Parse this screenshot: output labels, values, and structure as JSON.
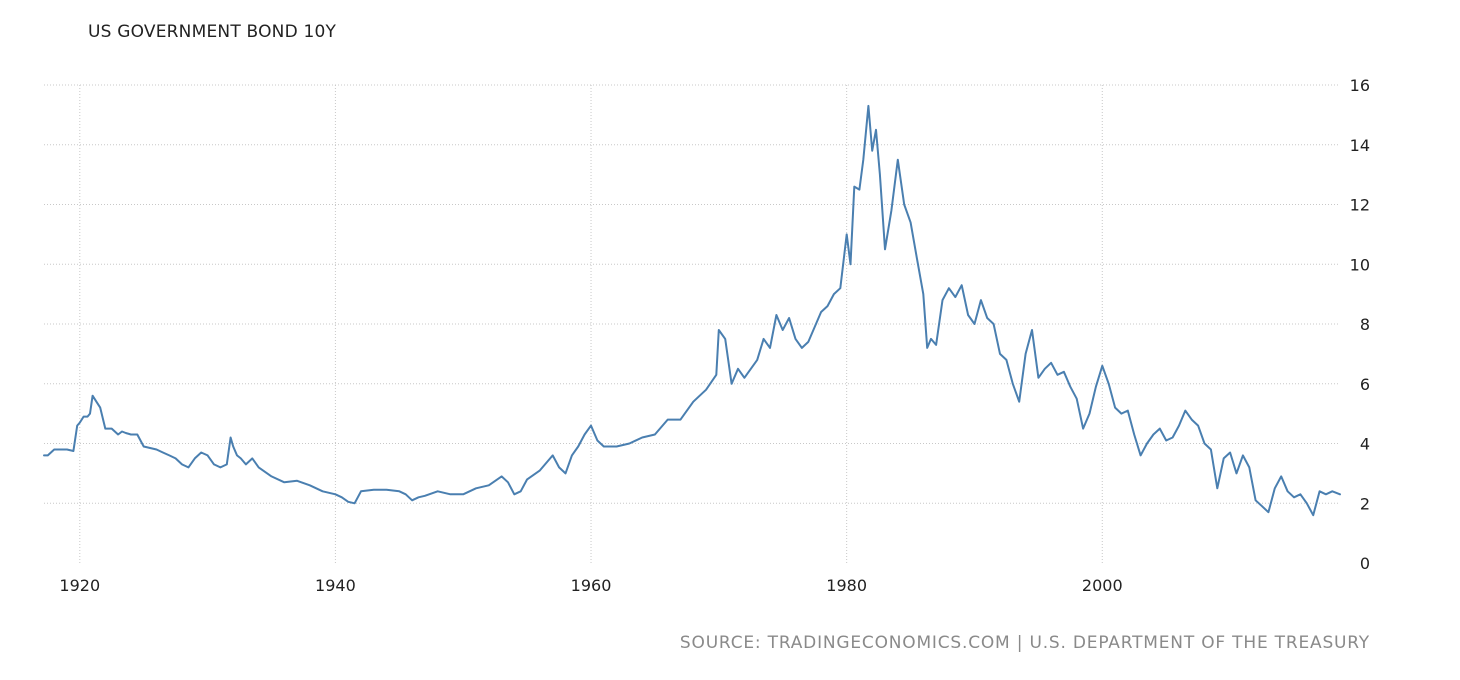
{
  "chart_data": {
    "type": "line",
    "title": "US GOVERNMENT BOND 10Y",
    "source": "SOURCE: TRADINGECONOMICS.COM | U.S. DEPARTMENT OF THE TREASURY",
    "xlabel": "",
    "ylabel": "",
    "xlim": [
      1917.2,
      2018.6
    ],
    "ylim": [
      0,
      16
    ],
    "x_ticks": [
      1920,
      1940,
      1960,
      1980,
      2000
    ],
    "y_ticks": [
      0,
      2,
      4,
      6,
      8,
      10,
      12,
      14,
      16
    ],
    "y_axis_position": "right",
    "grid": true,
    "legend": "none",
    "line_color": "#4a7fb0",
    "series": [
      {
        "x": [
          1917.2,
          1917.5,
          1918.0,
          1918.5,
          1919.0,
          1919.5,
          1919.8,
          1920.0,
          1920.3,
          1920.6,
          1920.8,
          1921.0,
          1921.3,
          1921.6,
          1922.0,
          1922.5,
          1923.0,
          1923.3,
          1923.6,
          1924.0,
          1924.5,
          1925.0,
          1925.5,
          1926.0,
          1926.5,
          1927.0,
          1927.5,
          1928.0,
          1928.5,
          1929.0,
          1929.5,
          1930.0,
          1930.5,
          1931.0,
          1931.5,
          1931.8,
          1932.0,
          1932.3,
          1932.6,
          1933.0,
          1933.5,
          1934.0,
          1935.0,
          1936.0,
          1937.0,
          1938.0,
          1939.0,
          1940.0,
          1940.5,
          1941.0,
          1941.5,
          1942.0,
          1943.0,
          1944.0,
          1945.0,
          1945.5,
          1946.0,
          1946.5,
          1947.0,
          1948.0,
          1949.0,
          1950.0,
          1951.0,
          1952.0,
          1953.0,
          1953.5,
          1954.0,
          1954.5,
          1955.0,
          1956.0,
          1957.0,
          1957.5,
          1958.0,
          1958.5,
          1959.0,
          1959.5,
          1960.0,
          1960.5,
          1961.0,
          1962.0,
          1963.0,
          1964.0,
          1965.0,
          1966.0,
          1967.0,
          1968.0,
          1969.0,
          1969.8,
          1970.0,
          1970.5,
          1971.0,
          1971.5,
          1972.0,
          1973.0,
          1973.5,
          1974.0,
          1974.5,
          1975.0,
          1975.5,
          1976.0,
          1976.5,
          1977.0,
          1978.0,
          1978.5,
          1979.0,
          1979.5,
          1980.0,
          1980.3,
          1980.6,
          1981.0,
          1981.3,
          1981.7,
          1982.0,
          1982.3,
          1982.6,
          1983.0,
          1983.5,
          1984.0,
          1984.5,
          1985.0,
          1985.5,
          1986.0,
          1986.3,
          1986.6,
          1987.0,
          1987.5,
          1988.0,
          1988.5,
          1989.0,
          1989.5,
          1990.0,
          1990.5,
          1991.0,
          1991.5,
          1992.0,
          1992.5,
          1993.0,
          1993.5,
          1994.0,
          1994.5,
          1995.0,
          1995.5,
          1996.0,
          1996.5,
          1997.0,
          1997.5,
          1998.0,
          1998.5,
          1999.0,
          1999.5,
          2000.0,
          2000.5,
          2001.0,
          2001.5,
          2002.0,
          2002.5,
          2003.0,
          2003.5,
          2004.0,
          2004.5,
          2005.0,
          2005.5,
          2006.0,
          2006.5,
          2007.0,
          2007.5,
          2008.0,
          2008.5,
          2009.0,
          2009.5,
          2010.0,
          2010.5,
          2011.0,
          2011.5,
          2012.0,
          2012.5,
          2013.0,
          2013.5,
          2014.0,
          2014.5,
          2015.0,
          2015.5,
          2016.0,
          2016.5,
          2017.0,
          2017.5,
          2018.0,
          2018.6
        ],
        "y": [
          3.6,
          3.6,
          3.8,
          3.8,
          3.8,
          3.75,
          4.6,
          4.7,
          4.9,
          4.9,
          5.0,
          5.6,
          5.4,
          5.2,
          4.5,
          4.5,
          4.3,
          4.4,
          4.35,
          4.3,
          4.3,
          3.9,
          3.85,
          3.8,
          3.7,
          3.6,
          3.5,
          3.3,
          3.2,
          3.5,
          3.7,
          3.6,
          3.3,
          3.2,
          3.3,
          4.2,
          3.9,
          3.6,
          3.5,
          3.3,
          3.5,
          3.2,
          2.9,
          2.7,
          2.75,
          2.6,
          2.4,
          2.3,
          2.2,
          2.05,
          2.0,
          2.4,
          2.45,
          2.45,
          2.4,
          2.3,
          2.1,
          2.2,
          2.25,
          2.4,
          2.3,
          2.3,
          2.5,
          2.6,
          2.9,
          2.7,
          2.3,
          2.4,
          2.8,
          3.1,
          3.6,
          3.2,
          3.0,
          3.6,
          3.9,
          4.3,
          4.6,
          4.1,
          3.9,
          3.9,
          4.0,
          4.2,
          4.3,
          4.8,
          4.8,
          5.4,
          5.8,
          6.3,
          7.8,
          7.5,
          6.0,
          6.5,
          6.2,
          6.8,
          7.5,
          7.2,
          8.3,
          7.8,
          8.2,
          7.5,
          7.2,
          7.4,
          8.4,
          8.6,
          9.0,
          9.2,
          11.0,
          10.0,
          12.6,
          12.5,
          13.5,
          15.3,
          13.8,
          14.5,
          13.0,
          10.5,
          11.8,
          13.5,
          12.0,
          11.4,
          10.2,
          9.0,
          7.2,
          7.5,
          7.3,
          8.8,
          9.2,
          8.9,
          9.3,
          8.3,
          8.0,
          8.8,
          8.2,
          8.0,
          7.0,
          6.8,
          6.0,
          5.4,
          7.0,
          7.8,
          6.2,
          6.5,
          6.7,
          6.3,
          6.4,
          5.9,
          5.5,
          4.5,
          5.0,
          5.9,
          6.6,
          6.0,
          5.2,
          5.0,
          5.1,
          4.3,
          3.6,
          4.0,
          4.3,
          4.5,
          4.1,
          4.2,
          4.6,
          5.1,
          4.8,
          4.6,
          4.0,
          3.8,
          2.5,
          3.5,
          3.7,
          3.0,
          3.6,
          3.2,
          2.1,
          1.9,
          1.7,
          2.5,
          2.9,
          2.4,
          2.2,
          2.3,
          2.0,
          1.6,
          2.4,
          2.3,
          2.4,
          2.3
        ]
      }
    ]
  }
}
